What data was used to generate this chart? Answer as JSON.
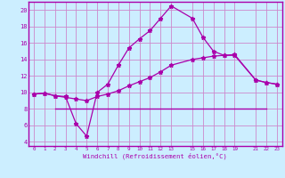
{
  "xlabel": "Windchill (Refroidissement éolien,°C)",
  "background_color": "#cceeff",
  "grid_color": "#cc88cc",
  "line_color": "#aa00aa",
  "border_color": "#aa00aa",
  "xlim": [
    -0.5,
    23.5
  ],
  "ylim": [
    3.5,
    21.0
  ],
  "xticks": [
    0,
    1,
    2,
    3,
    4,
    5,
    6,
    7,
    8,
    9,
    10,
    11,
    12,
    13,
    15,
    16,
    17,
    18,
    19,
    21,
    22,
    23
  ],
  "yticks": [
    4,
    6,
    8,
    10,
    12,
    14,
    16,
    18,
    20
  ],
  "line1_x": [
    0,
    1,
    2,
    3,
    4,
    5,
    6,
    7,
    8,
    9,
    10,
    11,
    12,
    13,
    15,
    16,
    17,
    18,
    19,
    21,
    22,
    23
  ],
  "line1_y": [
    9.8,
    9.9,
    9.6,
    9.5,
    6.2,
    4.7,
    10.0,
    11.0,
    13.3,
    15.4,
    16.5,
    17.5,
    19.0,
    20.5,
    19.0,
    16.7,
    15.0,
    14.5,
    14.5,
    11.5,
    11.2,
    11.0
  ],
  "line2_x": [
    0,
    1,
    2,
    3,
    4,
    5,
    6,
    7,
    8,
    9,
    10,
    11,
    12,
    13,
    15,
    16,
    17,
    18,
    19,
    21,
    22,
    23
  ],
  "line2_y": [
    9.8,
    9.9,
    9.6,
    9.4,
    9.2,
    9.0,
    9.5,
    9.8,
    10.2,
    10.8,
    11.3,
    11.8,
    12.5,
    13.3,
    14.0,
    14.2,
    14.4,
    14.5,
    14.6,
    11.5,
    11.2,
    11.0
  ],
  "line3_x": [
    2,
    22
  ],
  "line3_y": [
    8.0,
    8.0
  ],
  "figsize": [
    3.2,
    2.0
  ],
  "dpi": 100
}
